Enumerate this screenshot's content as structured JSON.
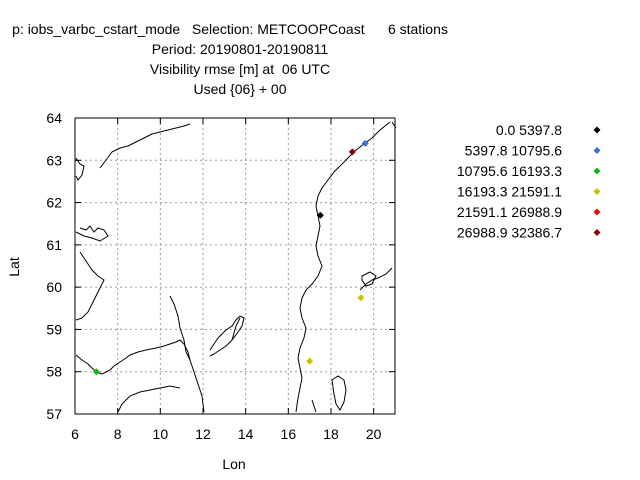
{
  "chart_data": {
    "type": "scatter",
    "title_lines": [
      "p: iobs_varbc_cstart_mode   Selection: METCOOPCoast      6 stations",
      "Period: 20190801-20190811",
      "Visibility rmse [m] at  06 UTC",
      "Used {06} + 00"
    ],
    "xlabel": "Lon",
    "ylabel": "Lat",
    "xlim": [
      6,
      21
    ],
    "ylim": [
      57,
      64
    ],
    "xticks": [
      6,
      8,
      10,
      12,
      14,
      16,
      18,
      20
    ],
    "yticks": [
      57,
      58,
      59,
      60,
      61,
      62,
      63,
      64
    ],
    "grid": true,
    "legend_position": "right",
    "series": [
      {
        "name": "0.0 5397.8",
        "color": "#000000",
        "points": [
          [
            17.5,
            61.7
          ]
        ]
      },
      {
        "name": "5397.8 10795.6",
        "color": "#3a6fd8",
        "points": [
          [
            19.6,
            63.4
          ]
        ]
      },
      {
        "name": "10795.6 16193.3",
        "color": "#17b317",
        "points": [
          [
            7.0,
            58.0
          ]
        ]
      },
      {
        "name": "16193.3 21591.1",
        "color": "#c8c300",
        "points": [
          [
            19.4,
            59.75
          ],
          [
            17.0,
            58.25
          ]
        ]
      },
      {
        "name": "21591.1 26988.9",
        "color": "#e01010",
        "points": []
      },
      {
        "name": "26988.9 32386.7",
        "color": "#8b0000",
        "points": [
          [
            19.0,
            63.2
          ]
        ]
      }
    ]
  }
}
